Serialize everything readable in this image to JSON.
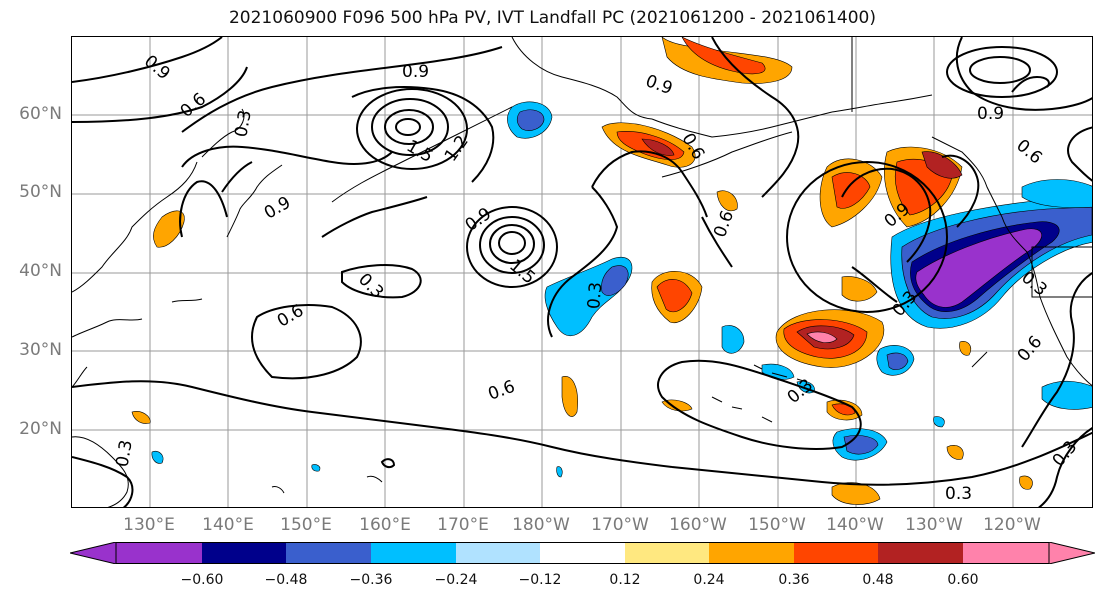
{
  "title": "2021060900 F096 500 hPa PV, IVT Landfall PC (2021061200 - 2021061400)",
  "lat_labels": [
    "60°N",
    "50°N",
    "40°N",
    "30°N",
    "20°N"
  ],
  "lon_labels": [
    "130°E",
    "140°E",
    "150°E",
    "160°E",
    "170°E",
    "180°W",
    "170°W",
    "160°W",
    "150°W",
    "140°W",
    "130°W",
    "120°W"
  ],
  "colorbar": {
    "ticks": [
      "−0.60",
      "−0.48",
      "−0.36",
      "−0.24",
      "−0.12",
      "0.12",
      "0.24",
      "0.36",
      "0.48",
      "0.60"
    ],
    "colors": [
      "#9932cc",
      "#00008b",
      "#3a5fcd",
      "#00bfff",
      "#b0e2ff",
      "#ffffff",
      "#ffe880",
      "#ffa500",
      "#ff4500",
      "#b22222",
      "#ff82ab"
    ]
  },
  "contour_labels": [
    "0.9",
    "0.6",
    "0.9",
    "0.3",
    "1.5",
    "1.2",
    "0.9",
    "0.9",
    "1.5",
    "0.3",
    "0.6",
    "0.9",
    "0.6",
    "0.9",
    "0.9",
    "0.6",
    "0.6",
    "0.3",
    "0.6",
    "0.3",
    "0.3",
    "0.6",
    "0.3",
    "0.3",
    "0.3",
    "0.3"
  ]
}
